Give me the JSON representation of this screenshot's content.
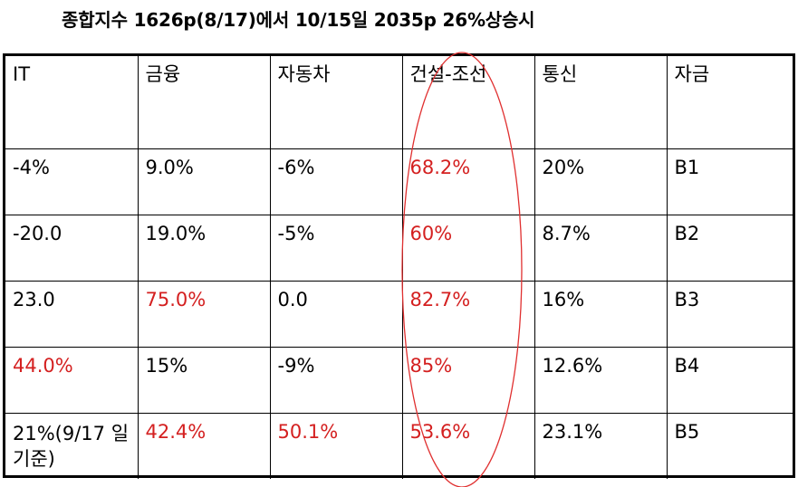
{
  "title": "종합지수 1626p(8/17)에서 10/15일 2035p 26%상승시",
  "headers": [
    "IT",
    "금융",
    "자동차",
    "건설-조선",
    "통신",
    "자금"
  ],
  "rows": [
    [
      {
        "v": "-4%"
      },
      {
        "v": "9.0%"
      },
      {
        "v": "-6%"
      },
      {
        "v": "68.2%",
        "red": true
      },
      {
        "v": "20%"
      },
      {
        "v": "B1"
      }
    ],
    [
      {
        "v": "-20.0"
      },
      {
        "v": "19.0%"
      },
      {
        "v": "-5%"
      },
      {
        "v": "60%",
        "red": true
      },
      {
        "v": "8.7%"
      },
      {
        "v": "B2"
      }
    ],
    [
      {
        "v": "23.0"
      },
      {
        "v": "75.0%",
        "red": true
      },
      {
        "v": "0.0"
      },
      {
        "v": "82.7%",
        "red": true
      },
      {
        "v": "16%"
      },
      {
        "v": "B3"
      }
    ],
    [
      {
        "v": "44.0%",
        "red": true
      },
      {
        "v": "15%"
      },
      {
        "v": "-9%"
      },
      {
        "v": "85%",
        "red": true
      },
      {
        "v": "12.6%"
      },
      {
        "v": "B4"
      }
    ],
    [
      {
        "v": "21%(9/17 일기준)"
      },
      {
        "v": "42.4%",
        "red": true
      },
      {
        "v": "50.1%",
        "red": true
      },
      {
        "v": "53.6%",
        "red": true
      },
      {
        "v": "23.1%"
      },
      {
        "v": "B5"
      }
    ]
  ],
  "colors": {
    "highlight": "#d42020",
    "ellipse": "#e03030"
  }
}
